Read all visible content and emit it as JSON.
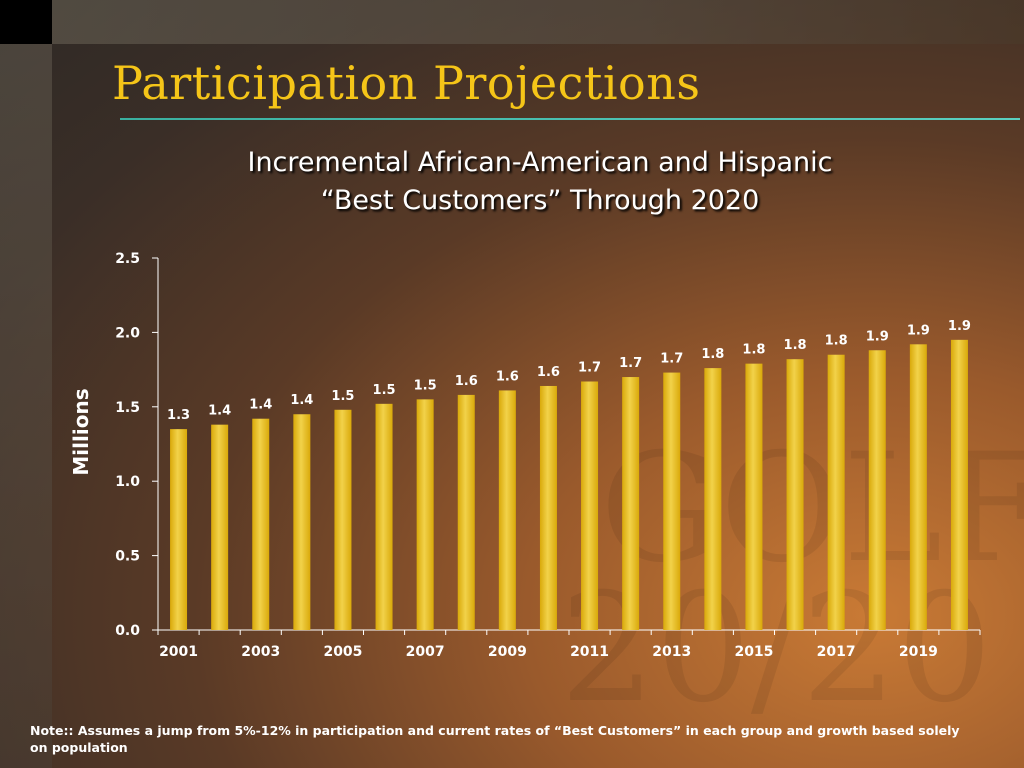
{
  "slide": {
    "title": "Participation Projections",
    "subtitle_line1": "Incremental African-American and Hispanic",
    "subtitle_line2": "“Best Customers” Through 2020",
    "note": "Note::  Assumes a jump from 5%-12% in participation and current rates of “Best Customers” in each group and growth based solely on population",
    "watermark_line1": "GOLF",
    "watermark_line2": "20/20"
  },
  "colors": {
    "title": "#f5c518",
    "bar": "#d9a90a",
    "bar_highlight": "#f2d24a",
    "axis": "#ffffff"
  },
  "chart_data": {
    "type": "bar",
    "title": "",
    "ylabel": "Millions",
    "xlabel": "",
    "ylim": [
      0,
      2.5
    ],
    "yticks": [
      0.0,
      0.5,
      1.0,
      1.5,
      2.0,
      2.5
    ],
    "ytick_labels": [
      "0.0",
      "0.5",
      "1.0",
      "1.5",
      "2.0",
      "2.5"
    ],
    "categories": [
      "2001",
      "2002",
      "2003",
      "2004",
      "2005",
      "2006",
      "2007",
      "2008",
      "2009",
      "2010",
      "2011",
      "2012",
      "2013",
      "2014",
      "2015",
      "2016",
      "2017",
      "2018",
      "2019",
      "2020"
    ],
    "xtick_labels": [
      "2001",
      "2003",
      "2005",
      "2007",
      "2009",
      "2011",
      "2013",
      "2015",
      "2017",
      "2019"
    ],
    "values": [
      1.35,
      1.38,
      1.42,
      1.45,
      1.48,
      1.52,
      1.55,
      1.58,
      1.61,
      1.64,
      1.67,
      1.7,
      1.73,
      1.76,
      1.79,
      1.82,
      1.85,
      1.88,
      1.92,
      1.95
    ],
    "value_labels": [
      "1.3",
      "1.4",
      "1.4",
      "1.4",
      "1.5",
      "1.5",
      "1.5",
      "1.6",
      "1.6",
      "1.6",
      "1.7",
      "1.7",
      "1.7",
      "1.8",
      "1.8",
      "1.8",
      "1.8",
      "1.9",
      "1.9",
      "1.9"
    ],
    "grid": false,
    "legend": "none"
  }
}
